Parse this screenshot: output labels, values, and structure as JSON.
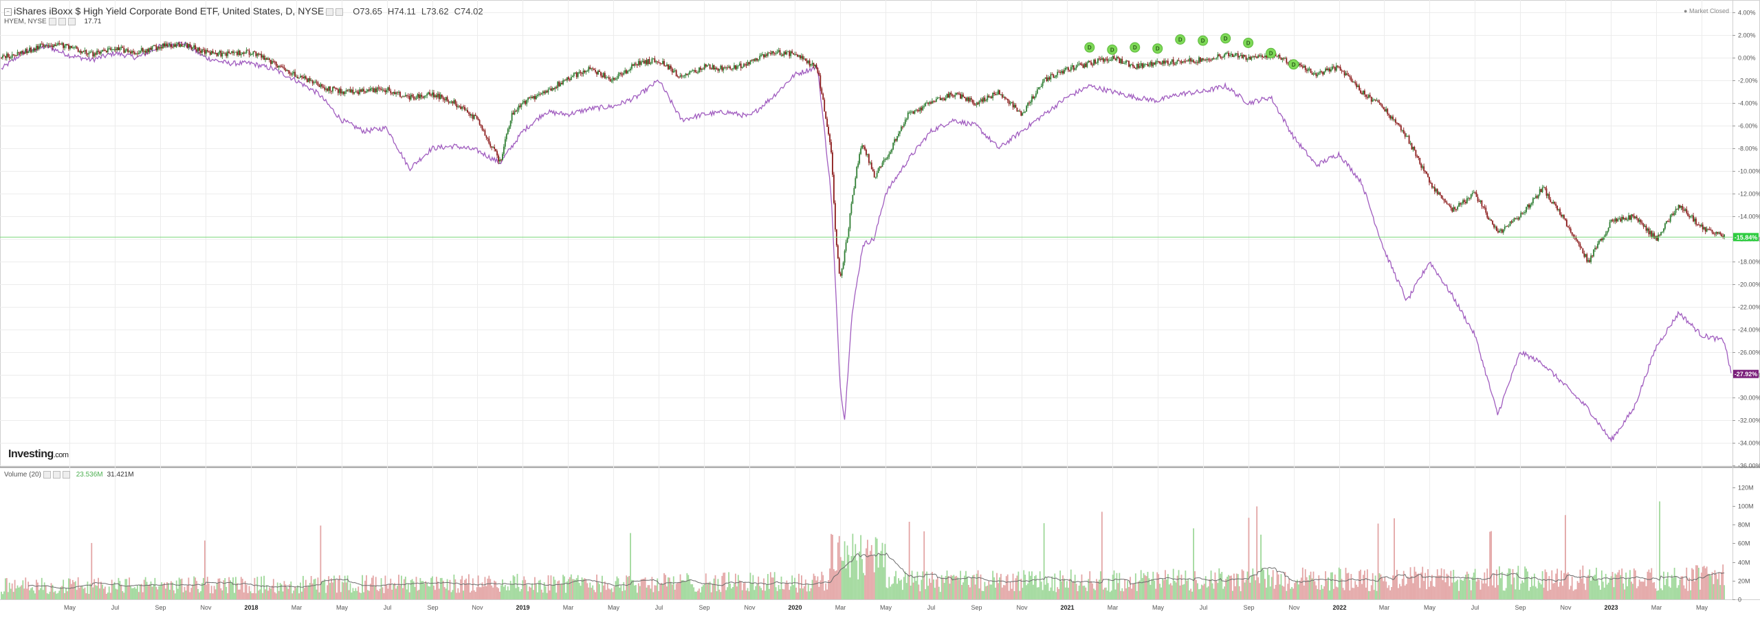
{
  "header": {
    "title": "iShares iBoxx $ High Yield Corporate Bond ETF, United States, D, NYSE",
    "open": "O73.65",
    "high": "H74.11",
    "low": "L73.62",
    "close": "C74.02",
    "compare_label": "HYEM, NYSE",
    "compare_value": "17.71",
    "market_status": "Market Closed"
  },
  "logo": {
    "main": "Investing",
    "suffix": ".com"
  },
  "volume_header": {
    "label": "Volume (20)",
    "value_green": "23.536M",
    "value_dark": "31.421M"
  },
  "colors": {
    "up": "#2e7d32",
    "down": "#8b1a1a",
    "compare": "#a05cbf",
    "hline": "#7dd87d",
    "badge_green": "#2ecc40",
    "badge_purple": "#7b1f7b",
    "vol_up": "#9fd89a",
    "vol_down": "#e3a5a5",
    "vol_ma": "#6b6b6b",
    "dividend": "#7ed957"
  },
  "chart_data": {
    "type": "line",
    "title": "iShares iBoxx $ High Yield Corporate Bond ETF, United States, D, NYSE",
    "x_tick_labels": [
      "May",
      "Jul",
      "Sep",
      "Nov",
      "2018",
      "Mar",
      "May",
      "Jul",
      "Sep",
      "Nov",
      "2019",
      "Mar",
      "May",
      "Jul",
      "Sep",
      "Nov",
      "2020",
      "Mar",
      "May",
      "Jul",
      "Sep",
      "Nov",
      "2021",
      "Mar",
      "May",
      "Jul",
      "Sep",
      "Nov",
      "2022",
      "Mar",
      "May",
      "Jul",
      "Sep",
      "Nov",
      "2023",
      "Mar",
      "May"
    ],
    "x_tick_positions_months": [
      3,
      5,
      7,
      9,
      11,
      13,
      15,
      17,
      19,
      21,
      23,
      25,
      27,
      29,
      31,
      33,
      35,
      37,
      39,
      41,
      43,
      45,
      47,
      49,
      51,
      53,
      55,
      57,
      59,
      61,
      63,
      65,
      67,
      69,
      71,
      73,
      75
    ],
    "xlim_months": [
      0,
      76.3
    ],
    "y_axis": {
      "unit": "%",
      "ylim": [
        -36,
        4
      ],
      "tick_labels": [
        "4.00%",
        "2.00%",
        "0.00%",
        "-2.00%",
        "-4.00%",
        "-6.00%",
        "-8.00%",
        "-10.00%",
        "-12.00%",
        "-14.00%",
        "-16.00%",
        "-18.00%",
        "-20.00%",
        "-22.00%",
        "-24.00%",
        "-26.00%",
        "-28.00%",
        "-30.00%",
        "-32.00%",
        "-34.00%",
        "-36.00%"
      ],
      "tick_values": [
        4,
        2,
        0,
        -2,
        -4,
        -6,
        -8,
        -10,
        -12,
        -14,
        -16,
        -18,
        -20,
        -22,
        -24,
        -26,
        -28,
        -30,
        -32,
        -34,
        -36
      ]
    },
    "grid": true,
    "series": [
      {
        "name": "",
        "style": "candlestick",
        "points": [
          [
            0,
            0
          ],
          [
            1,
            0.5
          ],
          [
            2,
            1.2
          ],
          [
            3,
            1.0
          ],
          [
            4,
            0.3
          ],
          [
            5,
            0.8
          ],
          [
            6,
            0.5
          ],
          [
            7,
            1.0
          ],
          [
            8,
            1.2
          ],
          [
            9,
            0.5
          ],
          [
            10,
            0.3
          ],
          [
            11,
            0.5
          ],
          [
            12,
            -0.5
          ],
          [
            13,
            -1.5
          ],
          [
            14,
            -2.5
          ],
          [
            15,
            -3.0
          ],
          [
            16,
            -3.0
          ],
          [
            17,
            -2.8
          ],
          [
            18,
            -3.5
          ],
          [
            19,
            -3.2
          ],
          [
            20,
            -4.0
          ],
          [
            21,
            -5.5
          ],
          [
            22,
            -9.2
          ],
          [
            22.5,
            -5.0
          ],
          [
            23,
            -4.0
          ],
          [
            24,
            -3.0
          ],
          [
            25,
            -1.8
          ],
          [
            26,
            -1.0
          ],
          [
            27,
            -2.0
          ],
          [
            28,
            -0.5
          ],
          [
            29,
            -0.2
          ],
          [
            30,
            -1.8
          ],
          [
            31,
            -0.8
          ],
          [
            32,
            -1.0
          ],
          [
            33,
            -0.5
          ],
          [
            34,
            0.5
          ],
          [
            35,
            0.3
          ],
          [
            36,
            -1.0
          ],
          [
            36.6,
            -8.0
          ],
          [
            36.8,
            -16.0
          ],
          [
            37.0,
            -19.5
          ],
          [
            37.3,
            -16.0
          ],
          [
            37.7,
            -10.0
          ],
          [
            38,
            -7.5
          ],
          [
            38.5,
            -10.5
          ],
          [
            39,
            -9.0
          ],
          [
            40,
            -5.0
          ],
          [
            41,
            -4.0
          ],
          [
            42,
            -3.2
          ],
          [
            43,
            -4.0
          ],
          [
            44,
            -3.0
          ],
          [
            45,
            -5.0
          ],
          [
            46,
            -2.0
          ],
          [
            47,
            -1.0
          ],
          [
            48,
            -0.5
          ],
          [
            49,
            0.0
          ],
          [
            50,
            -0.8
          ],
          [
            51,
            -0.5
          ],
          [
            52,
            -0.3
          ],
          [
            53,
            -0.2
          ],
          [
            54,
            0.3
          ],
          [
            55,
            0.0
          ],
          [
            56,
            0.3
          ],
          [
            57,
            -0.5
          ],
          [
            58,
            -1.5
          ],
          [
            59,
            -0.8
          ],
          [
            60,
            -3.0
          ],
          [
            61,
            -4.5
          ],
          [
            62,
            -7.0
          ],
          [
            63,
            -11.0
          ],
          [
            64,
            -13.5
          ],
          [
            65,
            -12.0
          ],
          [
            66,
            -15.5
          ],
          [
            67,
            -14.0
          ],
          [
            68,
            -11.5
          ],
          [
            69,
            -14.5
          ],
          [
            70,
            -18.0
          ],
          [
            71,
            -14.5
          ],
          [
            72,
            -14.0
          ],
          [
            73,
            -16.0
          ],
          [
            74,
            -13.0
          ],
          [
            75,
            -15.0
          ],
          [
            76,
            -15.84
          ]
        ]
      },
      {
        "name": "HYEM, NYSE",
        "style": "line",
        "points": [
          [
            0,
            -1.0
          ],
          [
            1,
            0.5
          ],
          [
            2,
            1.0
          ],
          [
            3,
            0.2
          ],
          [
            4,
            -0.2
          ],
          [
            5,
            0.4
          ],
          [
            6,
            0.0
          ],
          [
            7,
            1.0
          ],
          [
            8,
            1.3
          ],
          [
            9,
            0.0
          ],
          [
            10,
            -0.5
          ],
          [
            11,
            -0.5
          ],
          [
            12,
            -1.0
          ],
          [
            13,
            -2.0
          ],
          [
            14,
            -3.2
          ],
          [
            15,
            -5.5
          ],
          [
            16,
            -6.5
          ],
          [
            17,
            -6.2
          ],
          [
            18,
            -9.8
          ],
          [
            19,
            -8.0
          ],
          [
            20,
            -7.8
          ],
          [
            21,
            -8.2
          ],
          [
            22,
            -9.3
          ],
          [
            23,
            -6.5
          ],
          [
            24,
            -4.8
          ],
          [
            25,
            -5.0
          ],
          [
            26,
            -4.5
          ],
          [
            27,
            -4.3
          ],
          [
            28,
            -3.5
          ],
          [
            29,
            -2.0
          ],
          [
            30,
            -5.5
          ],
          [
            31,
            -5.0
          ],
          [
            32,
            -4.8
          ],
          [
            33,
            -5.2
          ],
          [
            34,
            -3.5
          ],
          [
            35,
            -1.5
          ],
          [
            36,
            -0.8
          ],
          [
            36.6,
            -12.0
          ],
          [
            37.0,
            -29.0
          ],
          [
            37.2,
            -32.0
          ],
          [
            37.5,
            -23.0
          ],
          [
            38,
            -16.5
          ],
          [
            38.5,
            -16.0
          ],
          [
            39,
            -12.0
          ],
          [
            40,
            -9.0
          ],
          [
            41,
            -6.5
          ],
          [
            42,
            -5.5
          ],
          [
            43,
            -6.0
          ],
          [
            44,
            -8.0
          ],
          [
            45,
            -6.5
          ],
          [
            46,
            -5.0
          ],
          [
            47,
            -3.5
          ],
          [
            48,
            -2.5
          ],
          [
            49,
            -3.0
          ],
          [
            50,
            -3.5
          ],
          [
            51,
            -3.8
          ],
          [
            52,
            -3.2
          ],
          [
            53,
            -3.0
          ],
          [
            54,
            -2.5
          ],
          [
            55,
            -4.0
          ],
          [
            56,
            -3.5
          ],
          [
            57,
            -7.0
          ],
          [
            58,
            -9.5
          ],
          [
            59,
            -8.5
          ],
          [
            60,
            -11.0
          ],
          [
            61,
            -17.0
          ],
          [
            62,
            -21.5
          ],
          [
            63,
            -18.0
          ],
          [
            64,
            -21.0
          ],
          [
            65,
            -24.5
          ],
          [
            66,
            -31.5
          ],
          [
            67,
            -26.0
          ],
          [
            68,
            -27.0
          ],
          [
            69,
            -29.0
          ],
          [
            70,
            -31.0
          ],
          [
            71,
            -33.8
          ],
          [
            72,
            -31.0
          ],
          [
            73,
            -25.5
          ],
          [
            74,
            -22.5
          ],
          [
            75,
            -24.5
          ],
          [
            76,
            -25.0
          ],
          [
            76.3,
            -27.92
          ]
        ]
      }
    ],
    "horizontal_line": {
      "value": -15.84,
      "label": "-15.84%"
    },
    "last_value_labels": [
      {
        "value": -15.84,
        "label": "-15.84%"
      },
      {
        "value": -27.92,
        "label": "-27.92%"
      }
    ],
    "dividend_markers": {
      "label": "D",
      "points": [
        [
          48,
          0.3
        ],
        [
          49,
          0.1
        ],
        [
          50,
          0.3
        ],
        [
          51,
          0.2
        ],
        [
          52,
          1.0
        ],
        [
          53,
          0.9
        ],
        [
          54,
          1.1
        ],
        [
          55,
          0.7
        ],
        [
          56,
          -0.2
        ],
        [
          57,
          -1.2
        ]
      ]
    },
    "volume": {
      "y_tick_labels": [
        "120M",
        "100M",
        "80M",
        "60M",
        "40M",
        "20M",
        "0"
      ],
      "y_tick_values": [
        120,
        100,
        80,
        60,
        40,
        20,
        0
      ],
      "ylim_millions": [
        0,
        125
      ],
      "unit": "M",
      "ma_period": 20
    }
  }
}
